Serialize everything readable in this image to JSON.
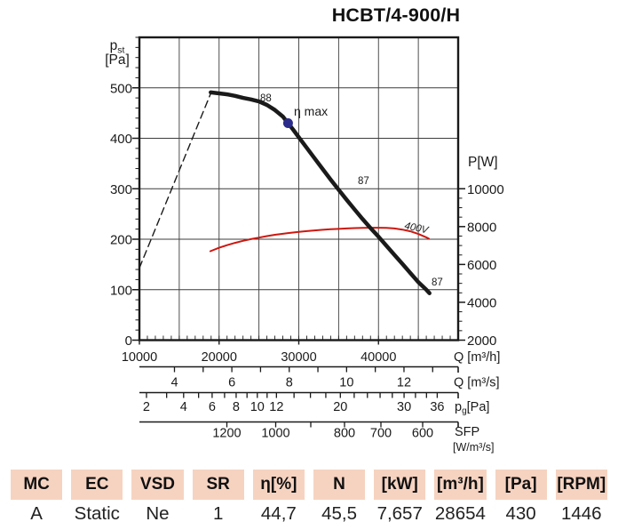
{
  "title": "HCBT/4-900/H",
  "colors": {
    "ink": "#1a1a1a",
    "grid": "#3c3c3c",
    "red_label": "#dd3c28",
    "red_curve": "#cc1810",
    "navy": "#2b2b8c",
    "table_header_bg": "#f6d3c1"
  },
  "chart_data": {
    "type": "line",
    "title": "HCBT/4-900/H",
    "grid": "on",
    "x_axis": {
      "unit": "Q [m³/h]",
      "min": 10000,
      "max": 50000,
      "grid_step": 5000,
      "minor_step": 1000,
      "tick_labels": [
        10000,
        20000,
        30000,
        40000
      ]
    },
    "y_left": {
      "label_pre": "p",
      "label_sub": "st",
      "label_unit": "[Pa]",
      "min": 0,
      "max": 600,
      "grid_step": 100,
      "minor_step": 20,
      "tick_labels": [
        0,
        100,
        200,
        300,
        400,
        500
      ]
    },
    "y_right": {
      "unit": "P[W]",
      "min": 2000,
      "max": 18000,
      "minor_step": 500,
      "minor_max": 10000,
      "tick_labels": [
        2000,
        4000,
        6000,
        8000,
        10000
      ]
    },
    "qs_axis": {
      "unit": "Q [m³/s]",
      "factor": 3600,
      "tick_min": 4,
      "tick_max": 13,
      "labeled": [
        4,
        6,
        8,
        10,
        12
      ]
    },
    "pg_axis": {
      "label_pre": "p",
      "label_sub": "g",
      "label_post": "[Pa]",
      "sqrt_a": 64.0,
      "sqrt_b": 71.4,
      "ticks": [
        2,
        3,
        4,
        5,
        6,
        7,
        8,
        9,
        10,
        11,
        12,
        14,
        16,
        18,
        20,
        22,
        24,
        26,
        28,
        30,
        32,
        34,
        36
      ],
      "labeled": [
        2,
        4,
        6,
        8,
        10,
        12,
        20,
        30,
        36
      ]
    },
    "sfp_axis": {
      "label1": "SFP",
      "label2": "[W/m³/s]",
      "ticks": [
        {
          "v": 1200,
          "x": 255.5,
          "labeled": true
        },
        {
          "v": 1000,
          "x": 310.5,
          "labeled": true
        },
        {
          "v": 900,
          "x": 350.0,
          "labeled": false
        },
        {
          "v": 800,
          "x": 388.0,
          "labeled": true
        },
        {
          "v": 700,
          "x": 429.0,
          "labeled": true
        },
        {
          "v": 600,
          "x": 476.0,
          "labeled": true
        }
      ]
    },
    "series": [
      {
        "name": "system-resistance-line",
        "axis": "left",
        "dashed": true,
        "width": 1.4,
        "color": "#1a1a1a",
        "points": [
          [
            10000,
            143
          ],
          [
            19000,
            491
          ]
        ]
      },
      {
        "name": "power-curve-400V",
        "axis": "right",
        "dashed": false,
        "width": 2,
        "color": "#cc1810",
        "points": [
          [
            18900,
            6700
          ],
          [
            20000,
            6880
          ],
          [
            21000,
            7020
          ],
          [
            22000,
            7140
          ],
          [
            23000,
            7250
          ],
          [
            24000,
            7340
          ],
          [
            25000,
            7420
          ],
          [
            26000,
            7500
          ],
          [
            27000,
            7570
          ],
          [
            28000,
            7620
          ],
          [
            28654,
            7657
          ],
          [
            30000,
            7720
          ],
          [
            31000,
            7760
          ],
          [
            32000,
            7800
          ],
          [
            33000,
            7830
          ],
          [
            34000,
            7860
          ],
          [
            35000,
            7880
          ],
          [
            36000,
            7900
          ],
          [
            37000,
            7920
          ],
          [
            38000,
            7930
          ],
          [
            39000,
            7940
          ],
          [
            40000,
            7940
          ],
          [
            41000,
            7930
          ],
          [
            42000,
            7900
          ],
          [
            43000,
            7840
          ],
          [
            44000,
            7750
          ],
          [
            45000,
            7610
          ],
          [
            46000,
            7430
          ],
          [
            46320,
            7360
          ]
        ]
      },
      {
        "name": "pressure-curve",
        "axis": "left",
        "dashed": false,
        "width": 4.5,
        "color": "#1a1a1a",
        "points": [
          [
            18950,
            491
          ],
          [
            20000,
            489
          ],
          [
            21000,
            487
          ],
          [
            22000,
            484
          ],
          [
            23000,
            480
          ],
          [
            24000,
            477
          ],
          [
            25000,
            473
          ],
          [
            26000,
            466
          ],
          [
            27000,
            456
          ],
          [
            28000,
            443
          ],
          [
            28654,
            430
          ],
          [
            29300,
            417
          ],
          [
            30000,
            402
          ],
          [
            31000,
            381
          ],
          [
            32000,
            360
          ],
          [
            33000,
            339
          ],
          [
            34000,
            318
          ],
          [
            35000,
            298
          ],
          [
            36000,
            278
          ],
          [
            37000,
            259
          ],
          [
            38000,
            240
          ],
          [
            39000,
            222
          ],
          [
            40000,
            205
          ],
          [
            41000,
            187
          ],
          [
            42000,
            169
          ],
          [
            43000,
            151
          ],
          [
            44000,
            133
          ],
          [
            45000,
            115
          ],
          [
            46000,
            100
          ],
          [
            46400,
            93
          ]
        ]
      }
    ],
    "eta_max": {
      "q": 28654,
      "p": 430,
      "label": "η max"
    },
    "annotations": [
      {
        "text": "88",
        "x": 293,
        "y": 114,
        "fs": 11.5,
        "color": "#1a1a1a",
        "italic": false,
        "rotate": 0
      },
      {
        "text": "87",
        "x": 403,
        "y": 207,
        "fs": 11.5,
        "color": "#1a1a1a",
        "italic": false,
        "rotate": 0
      },
      {
        "text": "87",
        "x": 486,
        "y": 321,
        "fs": 11.5,
        "color": "#1a1a1a",
        "italic": false,
        "rotate": 0
      },
      {
        "text": "400V",
        "x": 455,
        "y": 257,
        "fs": 11.5,
        "color": "#cc1810",
        "italic": true,
        "rotate": 12
      },
      {
        "text": "η max",
        "x": 331,
        "y": 130,
        "fs": 14,
        "color": "#2b2b8c",
        "italic": false,
        "rotate": 0
      }
    ]
  },
  "table": {
    "headers": [
      "MC",
      "EC",
      "VSD",
      "SR",
      "η[%]",
      "N",
      "[kW]",
      "[m³/h]",
      "[Pa]",
      "[RPM]"
    ],
    "values": [
      "A",
      "Static",
      "Ne",
      "1",
      "44,7",
      "45,5",
      "7,657",
      "28654",
      "430",
      "1446"
    ]
  }
}
